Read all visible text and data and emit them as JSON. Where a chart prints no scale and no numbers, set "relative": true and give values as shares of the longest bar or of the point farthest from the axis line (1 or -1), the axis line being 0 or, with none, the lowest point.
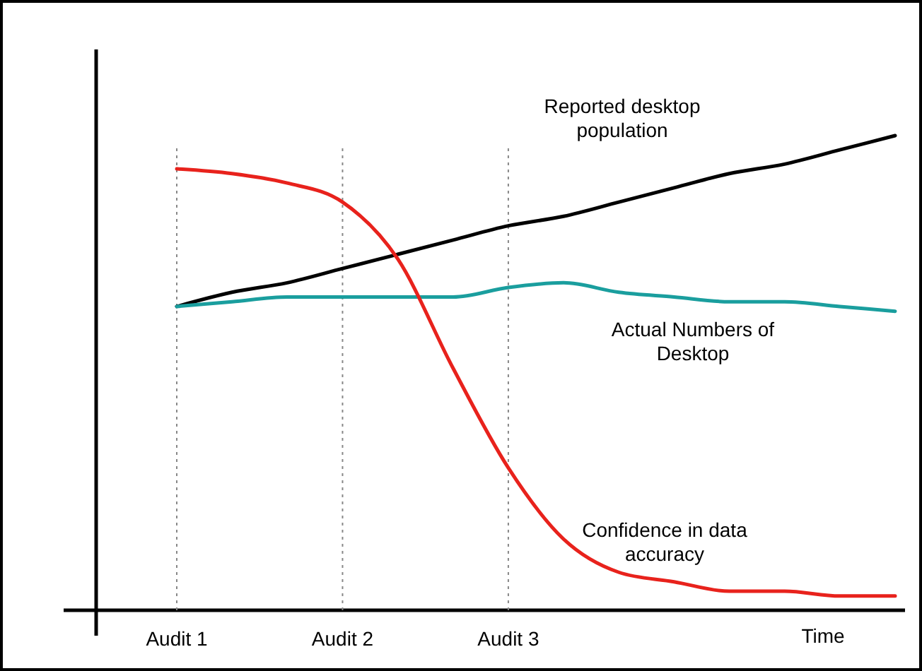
{
  "chart_data": {
    "type": "line",
    "relative": true,
    "xlabel": "Time",
    "categories": [
      "Audit 1",
      null,
      null,
      "Audit 2",
      null,
      null,
      "Audit 3",
      null,
      null,
      null,
      null,
      null,
      null,
      null
    ],
    "series": [
      {
        "name": "Reported desktop population",
        "color": "#000000",
        "values": [
          0.64,
          0.67,
          0.69,
          0.72,
          0.75,
          0.78,
          0.81,
          0.83,
          0.86,
          0.89,
          0.92,
          0.94,
          0.97,
          1.0
        ]
      },
      {
        "name": "Actual Numbers of Desktop",
        "color": "#1a9e9e",
        "values": [
          0.64,
          0.65,
          0.66,
          0.66,
          0.66,
          0.66,
          0.68,
          0.69,
          0.67,
          0.66,
          0.65,
          0.65,
          0.64,
          0.63
        ]
      },
      {
        "name": "Confidence in data accuracy",
        "color": "#e8221c",
        "values": [
          0.93,
          0.92,
          0.9,
          0.86,
          0.74,
          0.51,
          0.3,
          0.15,
          0.08,
          0.06,
          0.04,
          0.04,
          0.03,
          0.03
        ]
      }
    ],
    "ref_lines": [
      {
        "axis": "x",
        "value": "Audit 1",
        "label": null,
        "color": "#888888",
        "line_style": "dotted"
      },
      {
        "axis": "x",
        "value": "Audit 2",
        "label": null,
        "color": "#888888",
        "line_style": "dotted"
      },
      {
        "axis": "x",
        "value": "Audit 3",
        "label": null,
        "color": "#888888",
        "line_style": "dotted"
      }
    ]
  }
}
